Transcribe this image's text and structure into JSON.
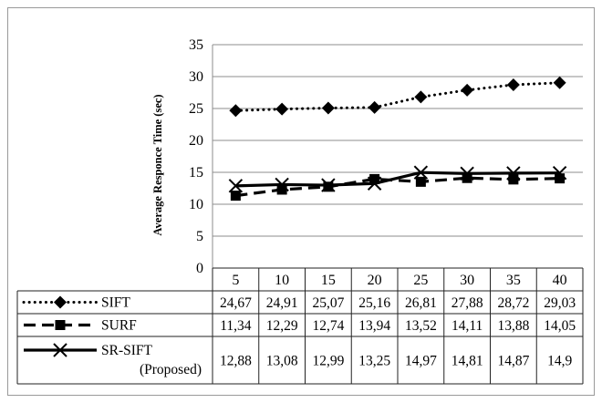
{
  "chart_data": {
    "type": "line",
    "title": "",
    "xlabel": "",
    "ylabel": "Average Responce Time (sec)",
    "ylim": [
      0,
      35
    ],
    "yticks": [
      0,
      5,
      10,
      15,
      20,
      25,
      30,
      35
    ],
    "grid": true,
    "legend": "data-table",
    "categories": [
      "5",
      "10",
      "15",
      "20",
      "25",
      "30",
      "35",
      "40"
    ],
    "series": [
      {
        "name": "SIFT",
        "style": "dotted",
        "marker": "diamond",
        "values": [
          24.67,
          24.91,
          25.07,
          25.16,
          26.81,
          27.88,
          28.72,
          29.03
        ],
        "labels": [
          "24,67",
          "24,91",
          "25,07",
          "25,16",
          "26,81",
          "27,88",
          "28,72",
          "29,03"
        ]
      },
      {
        "name": "SURF",
        "style": "dashed",
        "marker": "square",
        "values": [
          11.34,
          12.29,
          12.74,
          13.94,
          13.52,
          14.11,
          13.88,
          14.05
        ],
        "labels": [
          "11,34",
          "12,29",
          "12,74",
          "13,94",
          "13,52",
          "14,11",
          "13,88",
          "14,05"
        ]
      },
      {
        "name": "SR-SIFT",
        "name_line2": "(Proposed)",
        "style": "solid",
        "marker": "x",
        "values": [
          12.88,
          13.08,
          12.99,
          13.25,
          14.97,
          14.81,
          14.87,
          14.9
        ],
        "labels": [
          "12,88",
          "13,08",
          "12,99",
          "13,25",
          "14,97",
          "14,81",
          "14,87",
          "14,9"
        ]
      }
    ]
  }
}
